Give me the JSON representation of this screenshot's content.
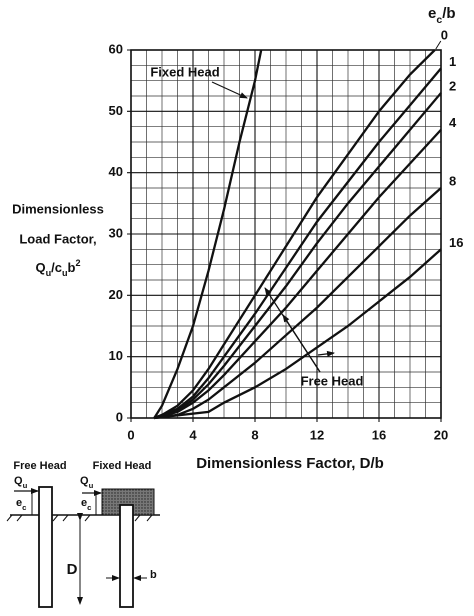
{
  "chart_data": {
    "type": "line",
    "header": [
      {
        "text": "e"
      },
      {
        "text": "c",
        "shift": "sub"
      },
      {
        "text": "/b"
      }
    ],
    "x_label": "Dimensionless Factor, D/b",
    "y_label_lines": [
      "Dimensionless",
      "Load Factor,"
    ],
    "y_label_formula": [
      {
        "text": "Q"
      },
      {
        "text": "u",
        "shift": "sub"
      },
      {
        "text": "/c"
      },
      {
        "text": "u",
        "shift": "sub"
      },
      {
        "text": "b"
      },
      {
        "text": "2",
        "shift": "sup"
      }
    ],
    "annotations": {
      "fixed_head": "Fixed Head",
      "free_head": "Free Head"
    },
    "xlim": [
      0,
      20
    ],
    "xticks": [
      0,
      4,
      8,
      12,
      16,
      20
    ],
    "ylim": [
      0,
      60
    ],
    "yticks": [
      0,
      10,
      20,
      30,
      40,
      50,
      60
    ],
    "grid": true,
    "minor_divisions": 4,
    "color": "#111111",
    "series": [
      {
        "name": "Fixed Head",
        "x": [
          1.5,
          2,
          3,
          4,
          5,
          6,
          7,
          8,
          8.4
        ],
        "values": [
          0,
          2,
          8,
          15,
          24,
          34,
          45,
          55,
          60
        ]
      },
      {
        "name": "0",
        "x": [
          1.5,
          2,
          3,
          4,
          5,
          6,
          8,
          10,
          12,
          14,
          16,
          18,
          19.6
        ],
        "values": [
          0,
          0.5,
          2,
          4.5,
          8,
          12,
          20,
          28,
          36,
          43,
          50,
          56,
          60
        ]
      },
      {
        "name": "1",
        "x": [
          1.5,
          3,
          4,
          5,
          6,
          8,
          10,
          12,
          14,
          16,
          18,
          20
        ],
        "values": [
          0,
          1.5,
          3.5,
          6.5,
          10,
          17,
          24.5,
          32,
          38.5,
          45,
          51,
          57
        ]
      },
      {
        "name": "2",
        "x": [
          1.5,
          3,
          4,
          5,
          6,
          8,
          10,
          12,
          14,
          16,
          18,
          20
        ],
        "values": [
          0,
          1.2,
          3,
          5.5,
          8.5,
          15,
          21.5,
          28.5,
          35,
          41,
          47,
          53
        ]
      },
      {
        "name": "4",
        "x": [
          1.5,
          3,
          4,
          5,
          6,
          8,
          10,
          12,
          14,
          16,
          18,
          20
        ],
        "values": [
          0,
          1,
          2.5,
          4.5,
          7,
          12.5,
          18,
          24,
          30,
          36,
          41.5,
          47
        ]
      },
      {
        "name": "8",
        "x": [
          1.5,
          3,
          4,
          5,
          6,
          8,
          10,
          12,
          14,
          16,
          18,
          20
        ],
        "values": [
          0,
          0.5,
          1.5,
          3,
          5,
          9,
          13.5,
          18,
          23,
          28,
          33,
          37.5
        ]
      },
      {
        "name": "16",
        "x": [
          1.5,
          5,
          6,
          8,
          10,
          12,
          14,
          16,
          18,
          20
        ],
        "values": [
          0,
          1,
          2.5,
          5,
          8,
          11.5,
          15,
          19,
          23,
          27.5
        ]
      }
    ]
  },
  "diagram": {
    "free_head": "Free Head",
    "fixed_head": "Fixed Head",
    "load": [
      {
        "text": "Q"
      },
      {
        "text": "u",
        "shift": "sub"
      }
    ],
    "eccentricity": [
      {
        "text": "e"
      },
      {
        "text": "c",
        "shift": "sub"
      }
    ],
    "depth": "D",
    "width": "b"
  }
}
